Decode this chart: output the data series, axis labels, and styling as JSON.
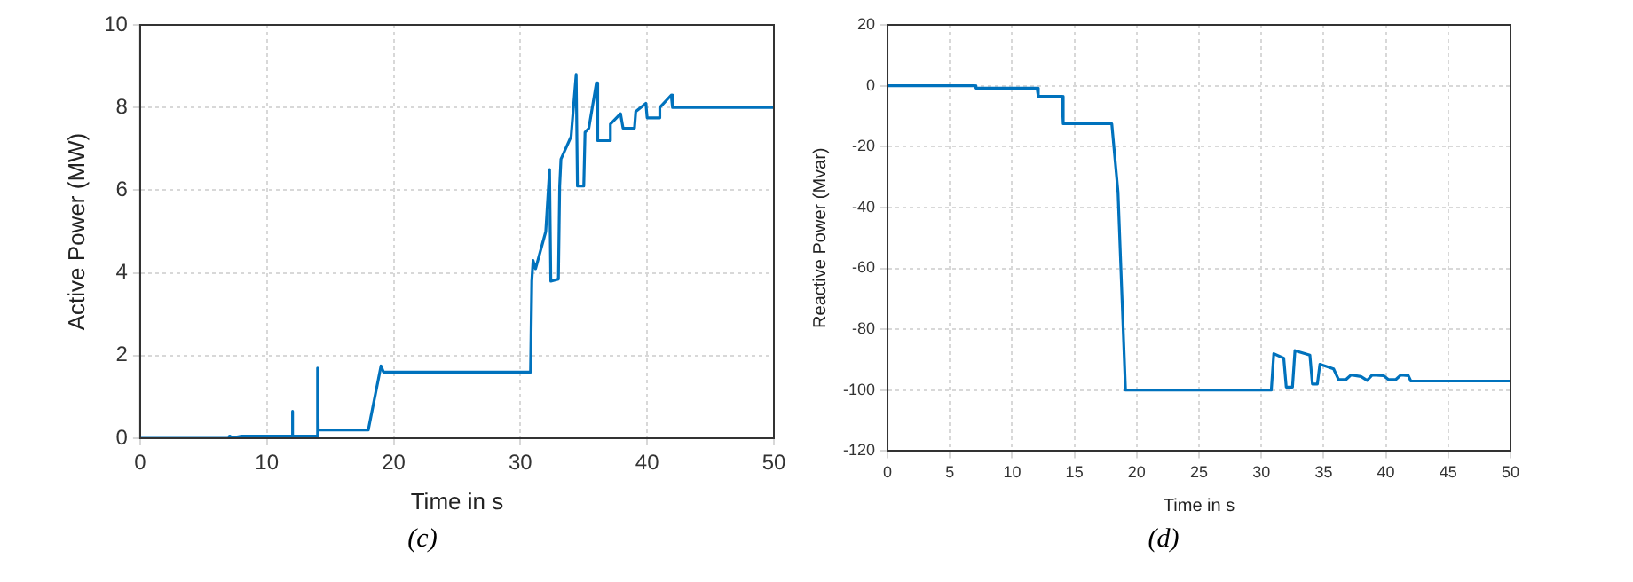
{
  "chart_data": [
    {
      "type": "line",
      "xlabel": "Time in s",
      "ylabel": "Active Power (MW)",
      "annotations": [
        "(c)"
      ],
      "xlim": [
        0,
        50
      ],
      "ylim": [
        0,
        10
      ],
      "xticks": [
        0,
        10,
        20,
        30,
        40,
        50
      ],
      "yticks": [
        0,
        2,
        4,
        6,
        8,
        10
      ],
      "grid": true,
      "marker": "none",
      "line_style": "solid",
      "series": [
        {
          "color": "#0072bd",
          "x": [
            0,
            7,
            7.05,
            7.1,
            8,
            11.95,
            12,
            12.05,
            13.95,
            14,
            14.05,
            18,
            19,
            19.2,
            30.8,
            30.9,
            31,
            31.2,
            32,
            32.3,
            32.4,
            33,
            33.1,
            33.2,
            34,
            34.4,
            34.5,
            35,
            35.1,
            35.4,
            36,
            36.1,
            37,
            37.1,
            37.9,
            38.1,
            39,
            39.1,
            39.9,
            40,
            40.9,
            41,
            41.9,
            42,
            50
          ],
          "values": [
            0,
            0,
            0.05,
            0,
            0.05,
            0.05,
            0.65,
            0.05,
            0.05,
            1.7,
            0.2,
            0.2,
            1.75,
            1.6,
            1.6,
            3.8,
            4.3,
            4.1,
            5,
            6.5,
            3.8,
            3.85,
            6.1,
            6.75,
            7.3,
            8.8,
            6.1,
            6.1,
            7.4,
            7.5,
            8.6,
            7.2,
            7.2,
            7.6,
            7.85,
            7.5,
            7.5,
            7.9,
            8.1,
            7.75,
            7.75,
            8,
            8.3,
            8.0,
            8.0
          ]
        }
      ]
    },
    {
      "type": "line",
      "xlabel": "Time in s",
      "ylabel": "Reactive Power (Mvar)",
      "annotations": [
        "(d)"
      ],
      "xlim": [
        0,
        50
      ],
      "ylim": [
        -120,
        20
      ],
      "xticks": [
        0,
        5,
        10,
        15,
        20,
        25,
        30,
        35,
        40,
        45,
        50
      ],
      "yticks": [
        -120,
        -100,
        -80,
        -60,
        -40,
        -20,
        0,
        20
      ],
      "grid": true,
      "marker": "none",
      "line_style": "solid",
      "series": [
        {
          "color": "#0072bd",
          "x": [
            0,
            7,
            7.1,
            12,
            12.1,
            14,
            14.1,
            18,
            18.5,
            19.1,
            30.8,
            31,
            31.8,
            32,
            32.5,
            32.7,
            33.9,
            34.1,
            34.5,
            34.7,
            35.8,
            36.2,
            36.8,
            37.2,
            38,
            38.5,
            38.9,
            39.8,
            40.2,
            40.8,
            41.2,
            41.8,
            42,
            50
          ],
          "values": [
            0,
            0,
            -0.8,
            -0.8,
            -3.5,
            -3.5,
            -12.5,
            -12.5,
            -35,
            -100,
            -100,
            -88,
            -89.5,
            -99,
            -99,
            -87,
            -88.5,
            -98,
            -98,
            -91.5,
            -93,
            -96.5,
            -96.5,
            -95,
            -95.5,
            -96.8,
            -95,
            -95.2,
            -96.5,
            -96.5,
            -95,
            -95.2,
            -97,
            -97
          ]
        }
      ]
    }
  ]
}
